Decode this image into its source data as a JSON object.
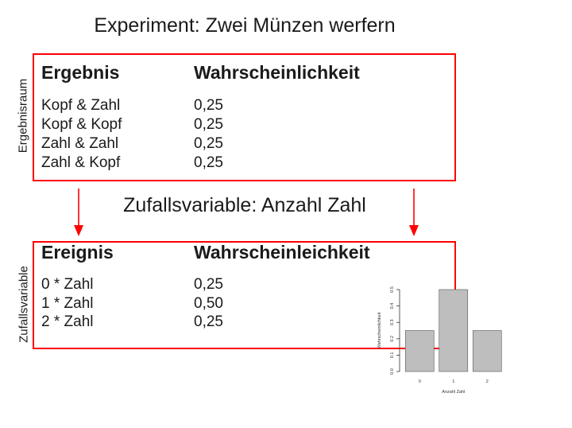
{
  "title": "Experiment: Zwei Münzen werfern",
  "subtitle": "Zufallsvariable: Anzahl Zahl",
  "top_table": {
    "side_label": "Ergebnisraum",
    "headers": [
      "Ergebnis",
      "Wahrscheinlichkeit"
    ],
    "rows": [
      [
        "Kopf & Zahl",
        "0,25"
      ],
      [
        "Kopf & Kopf",
        "0,25"
      ],
      [
        "Zahl & Zahl",
        "0,25"
      ],
      [
        "Zahl & Kopf",
        "0,25"
      ]
    ]
  },
  "bottom_table": {
    "side_label": "Zufallsvariable",
    "headers": [
      "Ereignis",
      "Wahrscheinleichkeit"
    ],
    "rows": [
      [
        "0 * Zahl",
        "0,25"
      ],
      [
        "1 * Zahl",
        "0,50"
      ],
      [
        "2 * Zahl",
        "0,25"
      ]
    ]
  },
  "colors": {
    "box": "#ff0000",
    "arrow": "#ff0000",
    "bar": "#bebebe"
  },
  "chart_data": {
    "type": "bar",
    "categories": [
      "0",
      "1",
      "2"
    ],
    "values": [
      0.25,
      0.5,
      0.25
    ],
    "title": "",
    "xlabel": "Anzahl Zahl",
    "ylabel": "Wahrscheinlichkeit",
    "ylim": [
      0,
      0.5
    ],
    "yticks": [
      "0.0",
      "0.1",
      "0.2",
      "0.3",
      "0.4",
      "0.5"
    ],
    "grid": false
  }
}
